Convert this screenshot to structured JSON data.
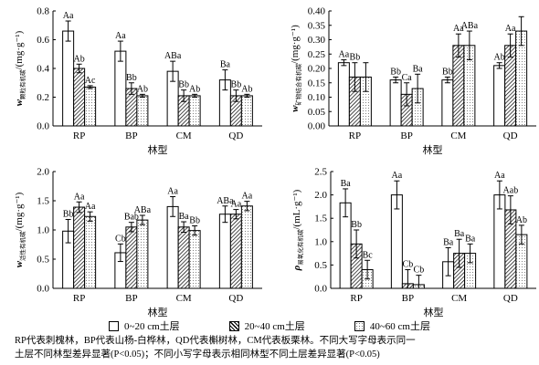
{
  "legend": [
    {
      "label": "0~20 cm土层",
      "pattern": "white"
    },
    {
      "label": "20~40 cm土层",
      "pattern": "hatch"
    },
    {
      "label": "40~60 cm土层",
      "pattern": "dots"
    }
  ],
  "caption": {
    "line1": "RP代表刺槐林，BP代表山杨-白桦林，QD代表槲树林，CM代表板栗林。不同大写字母表示同一",
    "line2": "土层不同林型差异显著(P<0.05)；不同小写字母表示相同林型不同土层差异显著(P<0.05)"
  },
  "chart_data": [
    {
      "type": "bar",
      "panel": "top-left",
      "categories": [
        "RP",
        "BP",
        "CM",
        "QD"
      ],
      "xlabel": "林型",
      "ylabel": "w",
      "ylabel_sub": "颗粒有机碳",
      "ylabel_unit": "/(mg·g⁻¹)",
      "ylim": [
        0,
        0.8
      ],
      "yticks": [
        0,
        0.2,
        0.4,
        0.6,
        0.8
      ],
      "tick_decimals": 1,
      "series": [
        {
          "values": [
            0.66,
            0.52,
            0.38,
            0.32
          ],
          "errors": [
            0.07,
            0.07,
            0.07,
            0.07
          ],
          "labels": [
            "Aa",
            "Aa",
            "ABa",
            "Ba"
          ]
        },
        {
          "values": [
            0.4,
            0.26,
            0.21,
            0.21
          ],
          "errors": [
            0.03,
            0.04,
            0.04,
            0.04
          ],
          "labels": [
            "Ab",
            "Bb",
            "Bb",
            "Bb"
          ]
        },
        {
          "values": [
            0.27,
            0.21,
            0.21,
            0.21
          ],
          "errors": [
            0.01,
            0.01,
            0.01,
            0.01
          ],
          "labels": [
            "Ac",
            "Ab",
            "Ab",
            "Ab"
          ]
        }
      ]
    },
    {
      "type": "bar",
      "panel": "top-right",
      "categories": [
        "RP",
        "BP",
        "CM",
        "QD"
      ],
      "xlabel": "林型",
      "ylabel": "w",
      "ylabel_sub": "矿物结合有机碳",
      "ylabel_unit": "/(mg·g⁻¹)",
      "ylim": [
        0,
        0.4
      ],
      "yticks": [
        0,
        0.05,
        0.1,
        0.15,
        0.2,
        0.25,
        0.3,
        0.35,
        0.4
      ],
      "tick_decimals": 2,
      "series": [
        {
          "values": [
            0.22,
            0.16,
            0.16,
            0.21
          ],
          "errors": [
            0.01,
            0.01,
            0.01,
            0.01
          ],
          "labels": [
            "Aa",
            "Bb",
            "Bb",
            "Ab"
          ]
        },
        {
          "values": [
            0.17,
            0.11,
            0.28,
            0.28
          ],
          "errors": [
            0.05,
            0.04,
            0.04,
            0.04
          ],
          "labels": [
            "Bb",
            "Ca",
            "Aa",
            "Aa"
          ]
        },
        {
          "values": [
            0.17,
            0.13,
            0.28,
            0.33
          ],
          "errors": [
            0.05,
            0.05,
            0.05,
            0.05
          ],
          "labels": [
            "",
            "Ba",
            "ABa",
            ""
          ]
        }
      ]
    },
    {
      "type": "bar",
      "panel": "bottom-left",
      "categories": [
        "RP",
        "BP",
        "CM",
        "QD"
      ],
      "xlabel": "林型",
      "ylabel": "w",
      "ylabel_sub": "活性有机碳",
      "ylabel_unit": "/(mg·g⁻¹)",
      "ylim": [
        0,
        2.0
      ],
      "yticks": [
        0,
        0.5,
        1.0,
        1.5,
        2.0
      ],
      "tick_decimals": 1,
      "series": [
        {
          "values": [
            0.98,
            0.61,
            1.4,
            1.27
          ],
          "errors": [
            0.2,
            0.15,
            0.17,
            0.14
          ],
          "labels": [
            "Bb",
            "Cb",
            "Aa",
            "ABa"
          ]
        },
        {
          "values": [
            1.39,
            1.05,
            1.05,
            1.27
          ],
          "errors": [
            0.09,
            0.08,
            0.09,
            0.08
          ],
          "labels": [
            "Aa",
            "Bab",
            "Ba",
            "Aa"
          ]
        },
        {
          "values": [
            1.23,
            1.17,
            0.99,
            1.41
          ],
          "errors": [
            0.08,
            0.08,
            0.08,
            0.08
          ],
          "labels": [
            "Aa",
            "ABa",
            "Bb",
            "Aa"
          ]
        }
      ]
    },
    {
      "type": "bar",
      "panel": "bottom-right",
      "categories": [
        "RP",
        "BP",
        "CM",
        "QD"
      ],
      "xlabel": "林型",
      "ylabel": "ρ",
      "ylabel_sub": "易氧化有机碳",
      "ylabel_unit": "/(mL·g⁻¹)",
      "ylim": [
        0,
        2.5
      ],
      "yticks": [
        0,
        0.5,
        1.0,
        1.5,
        2.0,
        2.5
      ],
      "tick_decimals": 1,
      "series": [
        {
          "values": [
            1.83,
            2.0,
            0.57,
            2.0
          ],
          "errors": [
            0.3,
            0.3,
            0.3,
            0.3
          ],
          "labels": [
            "Ba",
            "Aa",
            "Ba",
            "Aa"
          ]
        },
        {
          "values": [
            0.95,
            0.1,
            0.75,
            1.68
          ],
          "errors": [
            0.3,
            0.3,
            0.3,
            0.3
          ],
          "labels": [
            "Bb",
            "Cb",
            "Ba",
            "Aab"
          ]
        },
        {
          "values": [
            0.4,
            0.08,
            0.75,
            1.15
          ],
          "errors": [
            0.2,
            0.2,
            0.2,
            0.2
          ],
          "labels": [
            "Bc",
            "Cb",
            "Ba",
            "Ab"
          ]
        }
      ]
    }
  ]
}
